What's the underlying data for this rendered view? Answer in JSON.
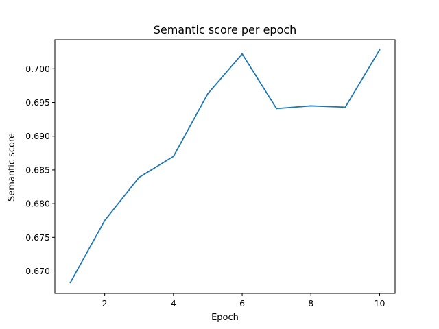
{
  "chart_data": {
    "type": "line",
    "title": "Semantic score per epoch",
    "xlabel": "Epoch",
    "ylabel": "Semantic score",
    "xlim": [
      0.55,
      10.45
    ],
    "ylim": [
      0.6667,
      0.7043
    ],
    "xticks": [
      2,
      4,
      6,
      8,
      10
    ],
    "yticks": [
      0.67,
      0.675,
      0.68,
      0.685,
      0.69,
      0.695,
      0.7
    ],
    "xtick_labels": [
      "2",
      "4",
      "6",
      "8",
      "10"
    ],
    "ytick_labels": [
      "0.670",
      "0.675",
      "0.680",
      "0.685",
      "0.690",
      "0.695",
      "0.700"
    ],
    "grid": false,
    "legend": "none",
    "series": [
      {
        "color": "#1f77b4",
        "x": [
          1,
          2,
          3,
          4,
          5,
          6,
          7,
          8,
          9,
          10
        ],
        "y": [
          0.6683,
          0.6775,
          0.6839,
          0.687,
          0.6963,
          0.7022,
          0.6941,
          0.6945,
          0.6943,
          0.7028
        ]
      }
    ]
  }
}
